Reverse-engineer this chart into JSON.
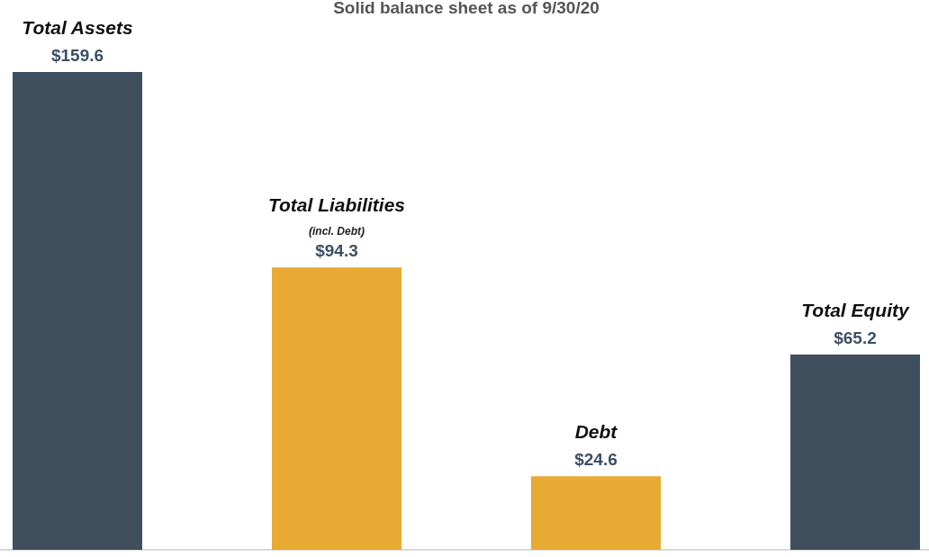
{
  "chart_data": {
    "type": "bar",
    "title": "Solid balance sheet as of 9/30/20",
    "categories": [
      "Total Assets",
      "Total Liabilities (incl. Debt)",
      "Debt",
      "Total Equity"
    ],
    "values": [
      159.6,
      94.3,
      24.6,
      65.2
    ],
    "colors": [
      "#3f4f5e",
      "#e9aa33",
      "#e9aa33",
      "#3f4f5e"
    ],
    "value_labels": [
      "$159.6",
      "$94.3",
      "$24.6",
      "$65.2"
    ],
    "grid": false,
    "legend": false
  }
}
